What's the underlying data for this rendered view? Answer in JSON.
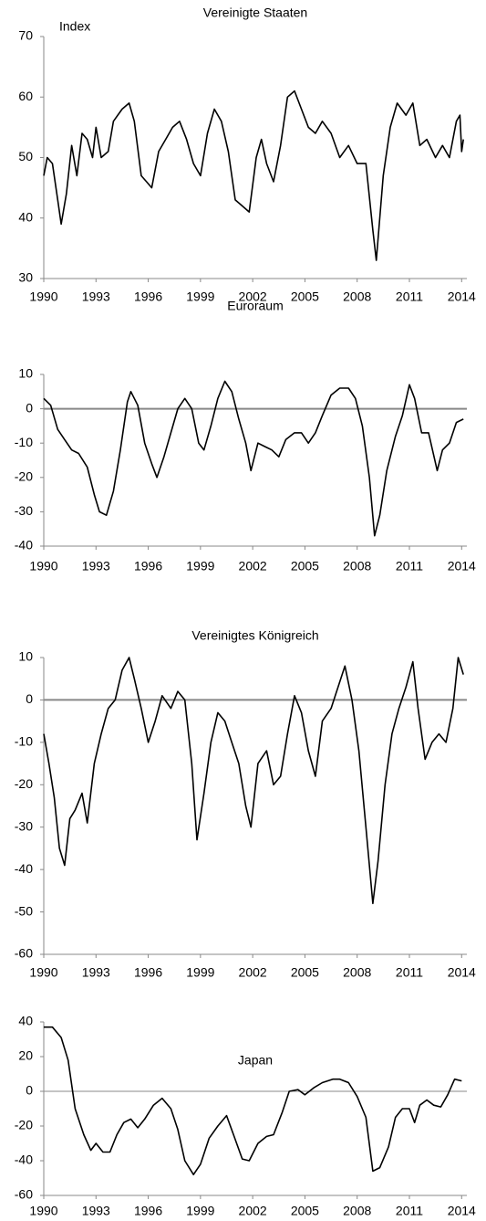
{
  "chart_data": [
    {
      "type": "line",
      "title": "Vereinigte Staaten",
      "y_label": "Index",
      "color": "#000000",
      "x": [
        1990,
        1990.2,
        1990.5,
        1990.8,
        1991.0,
        1991.3,
        1991.6,
        1991.9,
        1992.2,
        1992.5,
        1992.8,
        1993.0,
        1993.3,
        1993.7,
        1994.0,
        1994.5,
        1994.9,
        1995.2,
        1995.6,
        1995.9,
        1996.2,
        1996.6,
        1997.0,
        1997.4,
        1997.8,
        1998.2,
        1998.6,
        1999.0,
        1999.4,
        1999.8,
        2000.2,
        2000.6,
        2001.0,
        2001.4,
        2001.8,
        2002.2,
        2002.5,
        2002.8,
        2003.2,
        2003.6,
        2004.0,
        2004.4,
        2004.8,
        2005.2,
        2005.6,
        2006.0,
        2006.5,
        2007.0,
        2007.5,
        2008.0,
        2008.5,
        2008.9,
        2009.1,
        2009.5,
        2009.9,
        2010.3,
        2010.8,
        2011.2,
        2011.6,
        2012.0,
        2012.5,
        2012.9,
        2013.3,
        2013.7,
        2013.9,
        2014.0,
        2014.1
      ],
      "values": [
        47,
        50,
        49,
        43,
        39,
        44,
        52,
        47,
        54,
        53,
        50,
        55,
        50,
        51,
        56,
        58,
        59,
        56,
        47,
        46,
        45,
        51,
        53,
        55,
        56,
        53,
        49,
        47,
        54,
        58,
        56,
        51,
        43,
        42,
        41,
        50,
        53,
        49,
        46,
        52,
        60,
        61,
        58,
        55,
        54,
        56,
        54,
        50,
        52,
        49,
        49,
        38,
        33,
        47,
        55,
        59,
        57,
        59,
        52,
        53,
        50,
        52,
        50,
        56,
        57,
        51,
        53
      ],
      "xlim": [
        1990,
        2014.3
      ],
      "xticks": [
        1990,
        1993,
        1996,
        1999,
        2002,
        2005,
        2008,
        2011,
        2014
      ],
      "ylim": [
        30,
        70
      ],
      "yticks": [
        30,
        40,
        50,
        60,
        70
      ],
      "zero_line": false
    },
    {
      "type": "line",
      "title": "Euroraum",
      "color": "#000000",
      "x": [
        1990,
        1990.4,
        1990.8,
        1991.2,
        1991.6,
        1992.0,
        1992.5,
        1992.9,
        1993.2,
        1993.6,
        1994.0,
        1994.4,
        1994.8,
        1995.0,
        1995.4,
        1995.8,
        1996.2,
        1996.5,
        1996.9,
        1997.3,
        1997.7,
        1998.1,
        1998.5,
        1998.9,
        1999.2,
        1999.6,
        2000.0,
        2000.4,
        2000.8,
        2001.2,
        2001.6,
        2001.9,
        2002.3,
        2002.7,
        2003.1,
        2003.5,
        2003.9,
        2004.4,
        2004.8,
        2005.2,
        2005.6,
        2006.0,
        2006.5,
        2007.0,
        2007.5,
        2007.9,
        2008.3,
        2008.7,
        2009.0,
        2009.3,
        2009.7,
        2010.2,
        2010.6,
        2011.0,
        2011.3,
        2011.7,
        2012.1,
        2012.6,
        2012.9,
        2013.3,
        2013.7,
        2014.1
      ],
      "values": [
        3,
        1,
        -6,
        -9,
        -12,
        -13,
        -17,
        -25,
        -30,
        -31,
        -24,
        -12,
        2,
        5,
        1,
        -10,
        -16,
        -20,
        -14,
        -7,
        0,
        3,
        0,
        -10,
        -12,
        -5,
        3,
        8,
        5,
        -3,
        -10,
        -18,
        -10,
        -11,
        -12,
        -14,
        -9,
        -7,
        -7,
        -10,
        -7,
        -2,
        4,
        6,
        6,
        3,
        -5,
        -20,
        -37,
        -31,
        -18,
        -8,
        -2,
        7,
        3,
        -7,
        -7,
        -18,
        -12,
        -10,
        -4,
        -3
      ],
      "xlim": [
        1990,
        2014.3
      ],
      "xticks": [
        1990,
        1993,
        1996,
        1999,
        2002,
        2005,
        2008,
        2011,
        2014
      ],
      "ylim": [
        -40,
        10
      ],
      "yticks": [
        -40,
        -30,
        -20,
        -10,
        0,
        10
      ],
      "zero_line": true
    },
    {
      "type": "line",
      "title": "Vereinigtes Königreich",
      "color": "#000000",
      "x": [
        1990,
        1990.3,
        1990.6,
        1990.9,
        1991.2,
        1991.5,
        1991.8,
        1992.2,
        1992.5,
        1992.9,
        1993.3,
        1993.7,
        1994.1,
        1994.5,
        1994.9,
        1995.2,
        1995.6,
        1996.0,
        1996.4,
        1996.8,
        1997.3,
        1997.7,
        1998.1,
        1998.5,
        1998.8,
        1999.2,
        1999.6,
        2000.0,
        2000.4,
        2000.8,
        2001.2,
        2001.6,
        2001.9,
        2002.3,
        2002.8,
        2003.2,
        2003.6,
        2004.0,
        2004.4,
        2004.8,
        2005.2,
        2005.6,
        2006.0,
        2006.5,
        2006.9,
        2007.3,
        2007.7,
        2008.1,
        2008.5,
        2008.9,
        2009.2,
        2009.6,
        2010.0,
        2010.4,
        2010.8,
        2011.2,
        2011.5,
        2011.9,
        2012.3,
        2012.7,
        2013.1,
        2013.5,
        2013.8,
        2014.1
      ],
      "values": [
        -8,
        -15,
        -23,
        -35,
        -39,
        -28,
        -26,
        -22,
        -29,
        -15,
        -8,
        -2,
        0,
        7,
        10,
        5,
        -2,
        -10,
        -5,
        1,
        -2,
        2,
        0,
        -15,
        -33,
        -22,
        -10,
        -3,
        -5,
        -10,
        -15,
        -25,
        -30,
        -15,
        -12,
        -20,
        -18,
        -8,
        1,
        -3,
        -12,
        -18,
        -5,
        -2,
        3,
        8,
        0,
        -12,
        -30,
        -48,
        -38,
        -20,
        -8,
        -2,
        3,
        9,
        -2,
        -14,
        -10,
        -8,
        -10,
        -2,
        10,
        6
      ],
      "xlim": [
        1990,
        2014.3
      ],
      "xticks": [
        1990,
        1993,
        1996,
        1999,
        2002,
        2005,
        2008,
        2011,
        2014
      ],
      "ylim": [
        -60,
        10
      ],
      "yticks": [
        -60,
        -50,
        -40,
        -30,
        -20,
        -10,
        0,
        10
      ],
      "zero_line": true
    },
    {
      "type": "line",
      "title": "Japan",
      "color": "#000000",
      "x": [
        1990,
        1990.5,
        1991.0,
        1991.4,
        1991.8,
        1992.3,
        1992.7,
        1993.0,
        1993.4,
        1993.8,
        1994.2,
        1994.6,
        1995.0,
        1995.4,
        1995.8,
        1996.3,
        1996.8,
        1997.3,
        1997.7,
        1998.1,
        1998.6,
        1999.0,
        1999.5,
        2000.0,
        2000.5,
        2000.9,
        2001.4,
        2001.8,
        2002.3,
        2002.8,
        2003.2,
        2003.7,
        2004.1,
        2004.6,
        2005.0,
        2005.5,
        2006.0,
        2006.6,
        2007.0,
        2007.5,
        2008.0,
        2008.5,
        2008.9,
        2009.3,
        2009.8,
        2010.2,
        2010.6,
        2011.0,
        2011.3,
        2011.6,
        2012.0,
        2012.4,
        2012.8,
        2013.2,
        2013.6,
        2014.0
      ],
      "values": [
        37,
        37,
        31,
        18,
        -10,
        -25,
        -34,
        -30,
        -35,
        -35,
        -25,
        -18,
        -16,
        -21,
        -16,
        -8,
        -4,
        -10,
        -22,
        -40,
        -48,
        -42,
        -27,
        -20,
        -14,
        -25,
        -39,
        -40,
        -30,
        -26,
        -25,
        -12,
        0,
        1,
        -2,
        2,
        5,
        7,
        7,
        5,
        -3,
        -15,
        -46,
        -44,
        -32,
        -15,
        -10,
        -10,
        -18,
        -8,
        -5,
        -8,
        -9,
        -2,
        7,
        6
      ],
      "xlim": [
        1990,
        2014.3
      ],
      "xticks": [
        1990,
        1993,
        1996,
        1999,
        2002,
        2005,
        2008,
        2011,
        2014
      ],
      "ylim": [
        -60,
        40
      ],
      "yticks": [
        -60,
        -40,
        -20,
        0,
        20,
        40
      ],
      "zero_line": true
    }
  ]
}
